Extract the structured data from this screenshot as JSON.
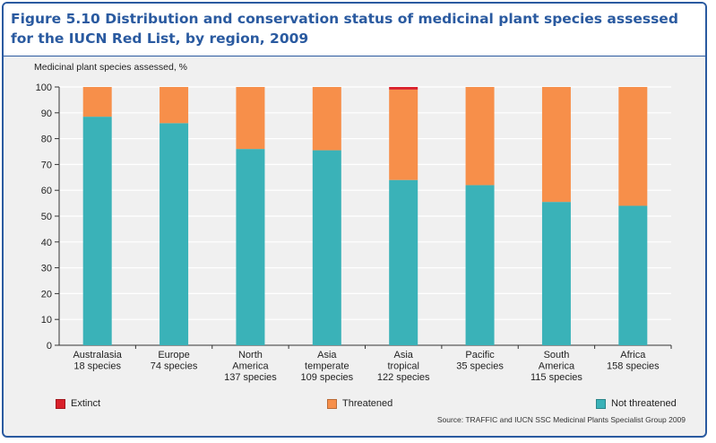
{
  "title": "Figure 5.10 Distribution and conservation status of medicinal plant species assessed for the IUCN Red List, by region, 2009",
  "source": "Source: TRAFFIC and IUCN SSC Medicinal Plants Specialist Group 2009",
  "colors": {
    "extinct": "#d9202a",
    "threatened": "#f78f4a",
    "not_threatened": "#3ab2b8",
    "frame": "#2a5aa0"
  },
  "legend": {
    "extinct": "Extinct",
    "threatened": "Threatened",
    "not_threatened": "Not threatened"
  },
  "chart_data": {
    "type": "bar",
    "stacked": true,
    "title": "Figure 5.10 Distribution and conservation status of medicinal plant species assessed for the IUCN Red List, by region, 2009",
    "ylabel": "Medicinal plant species assessed, %",
    "xlabel": "",
    "ylim": [
      0,
      100
    ],
    "yticks": [
      0,
      10,
      20,
      30,
      40,
      50,
      60,
      70,
      80,
      90,
      100
    ],
    "grid": true,
    "legend_position": "bottom",
    "categories": [
      [
        "Australasia",
        "18 species"
      ],
      [
        "Europe",
        "74 species"
      ],
      [
        "North",
        "America",
        "137 species"
      ],
      [
        "Asia",
        "temperate",
        "109 species"
      ],
      [
        "Asia",
        "tropical",
        "122 species"
      ],
      [
        "Pacific",
        "35 species"
      ],
      [
        "South",
        "America",
        "115 species"
      ],
      [
        "Africa",
        "158 species"
      ]
    ],
    "series": [
      {
        "name": "Not threatened",
        "key": "not_threatened",
        "values": [
          88.5,
          86,
          76,
          75.5,
          64,
          62,
          55.5,
          54
        ]
      },
      {
        "name": "Threatened",
        "key": "threatened",
        "values": [
          11.5,
          14,
          24,
          24.5,
          35,
          38,
          44.5,
          46
        ]
      },
      {
        "name": "Extinct",
        "key": "extinct",
        "values": [
          0,
          0,
          0,
          0,
          1,
          0,
          0,
          0
        ]
      }
    ]
  }
}
